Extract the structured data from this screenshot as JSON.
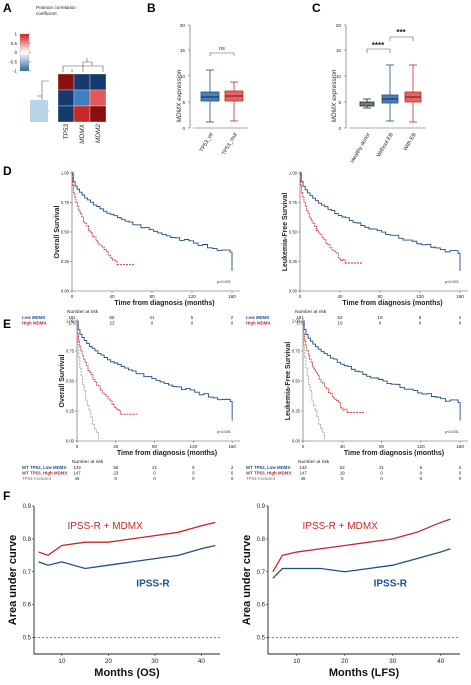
{
  "panels": {
    "A": {
      "label": "A",
      "legend_title_1": "Pearson correlation",
      "legend_title_2": "coefficient",
      "legend_ticks": [
        "1",
        "0.5",
        "0",
        "-0.5",
        "-1"
      ],
      "legend_colors": {
        "high": "#cc1f1f",
        "mid": "#ffffff",
        "low": "#2b6aa3"
      },
      "genes": [
        "TP53",
        "MDMX",
        "MDM2"
      ],
      "matrix_colors": [
        [
          "#8a1010",
          "#173a6e",
          "#173a6e"
        ],
        [
          "#173a6e",
          "#3f7fc0",
          "#e05a5a"
        ],
        [
          "#173a6e",
          "#c62828",
          "#8a1010"
        ]
      ]
    },
    "B": {
      "label": "B",
      "ylabel": "MDMX expression",
      "sig": "ns",
      "categories": [
        "TP53_wt",
        "TP53_mut"
      ]
    },
    "C": {
      "label": "C",
      "ylabel": "MDMX expression",
      "sig1": "****",
      "sig2": "***",
      "categories": [
        "Healthy donor",
        "Without EB",
        "With EB"
      ]
    },
    "D": {
      "label": "D",
      "left": {
        "ylabel": "Overall Survival",
        "pvalue": "p<0.001"
      },
      "right": {
        "ylabel": "Leukemia-Free Survival",
        "pvalue": "p<0.001"
      },
      "xlabel": "Time from diagnosis (months)",
      "number_at_risk": "Number at risk",
      "xticks": [
        "0",
        "40",
        "80",
        "120",
        "160"
      ],
      "yticks": [
        "1.00",
        "0.75",
        "0.50",
        "0.25",
        "0.00"
      ],
      "risk_left": [
        {
          "label": "Low MDMX",
          "values": [
            "181",
            "56",
            "21",
            "5",
            "2"
          ]
        },
        {
          "label": "High MDMX",
          "values": [
            "179",
            "23",
            "0",
            "0",
            "0"
          ]
        }
      ],
      "risk_right": [
        {
          "label": "Low MDMX",
          "values": [
            "181",
            "52",
            "19",
            "5",
            "2"
          ]
        },
        {
          "label": "High MDMX",
          "values": [
            "179",
            "19",
            "0",
            "0",
            "0"
          ]
        }
      ]
    },
    "E": {
      "label": "E",
      "left": {
        "ylabel": "Overall Survival",
        "pvalue": "p<0.001"
      },
      "right": {
        "ylabel": "Leukemia-Free Survival",
        "pvalue": "p<0.001"
      },
      "xlabel": "Time from diagnosis (months)",
      "number_at_risk": "Number at risk",
      "xticks": [
        "0",
        "40",
        "80",
        "120",
        "160"
      ],
      "yticks": [
        "1.00",
        "0.75",
        "0.50",
        "0.25",
        "0.00"
      ],
      "risk_left": [
        {
          "label": "WT TP53, Low MDMX",
          "values": [
            "143",
            "56",
            "21",
            "5",
            "2"
          ]
        },
        {
          "label": "WT TP53, High MDMX",
          "values": [
            "147",
            "23",
            "0",
            "0",
            "0"
          ]
        },
        {
          "label": "TP53-mutated",
          "values": [
            "46",
            "0",
            "0",
            "0",
            "0"
          ]
        }
      ],
      "risk_right": [
        {
          "label": "WT TP53, Low MDMX",
          "values": [
            "143",
            "52",
            "21",
            "5",
            "2"
          ]
        },
        {
          "label": "WT TP53, High MDMX",
          "values": [
            "147",
            "19",
            "0",
            "0",
            "0"
          ]
        },
        {
          "label": "TP53-mutated",
          "values": [
            "46",
            "0",
            "0",
            "0",
            "0"
          ]
        }
      ]
    },
    "F": {
      "label": "F",
      "ylabel": "Area under curve",
      "yticks": [
        "0.5",
        "0.6",
        "0.7",
        "0.8",
        "0.9"
      ],
      "xticks": [
        "10",
        "20",
        "30",
        "40"
      ],
      "left": {
        "xlabel": "Months (OS)",
        "series_red": "IPSS-R + MDMX",
        "series_blue": "IPSS-R"
      },
      "right": {
        "xlabel": "Months (LFS)",
        "series_red": "IPSS-R + MDMX",
        "series_blue": "IPSS-R"
      }
    }
  },
  "colors": {
    "blue": "#1f4e8c",
    "red": "#c62828",
    "gray": "#9e9e9e"
  },
  "chart_data": [
    {
      "type": "line",
      "xlabel": "Months (OS)",
      "ylabel": "Area under curve",
      "xlim": [
        4,
        44
      ],
      "ylim": [
        0.45,
        0.9
      ],
      "series": [
        {
          "name": "IPSS-R + MDMX",
          "x": [
            5,
            7,
            10,
            15,
            20,
            25,
            30,
            35,
            40,
            43
          ],
          "y": [
            0.76,
            0.75,
            0.78,
            0.79,
            0.79,
            0.8,
            0.81,
            0.82,
            0.84,
            0.85
          ]
        },
        {
          "name": "IPSS-R",
          "x": [
            5,
            7,
            10,
            15,
            20,
            25,
            30,
            35,
            40,
            43
          ],
          "y": [
            0.73,
            0.72,
            0.73,
            0.71,
            0.72,
            0.73,
            0.74,
            0.75,
            0.77,
            0.78
          ]
        }
      ]
    },
    {
      "type": "line",
      "xlabel": "Months (LFS)",
      "ylabel": "Area under curve",
      "xlim": [
        4,
        44
      ],
      "ylim": [
        0.45,
        0.9
      ],
      "series": [
        {
          "name": "IPSS-R + MDMX",
          "x": [
            5,
            7,
            10,
            15,
            20,
            25,
            30,
            35,
            40,
            42
          ],
          "y": [
            0.7,
            0.75,
            0.76,
            0.77,
            0.78,
            0.79,
            0.8,
            0.82,
            0.85,
            0.86
          ]
        },
        {
          "name": "IPSS-R",
          "x": [
            5,
            7,
            10,
            15,
            20,
            25,
            30,
            35,
            40,
            42
          ],
          "y": [
            0.68,
            0.71,
            0.71,
            0.71,
            0.7,
            0.71,
            0.72,
            0.74,
            0.76,
            0.77
          ]
        }
      ]
    }
  ]
}
